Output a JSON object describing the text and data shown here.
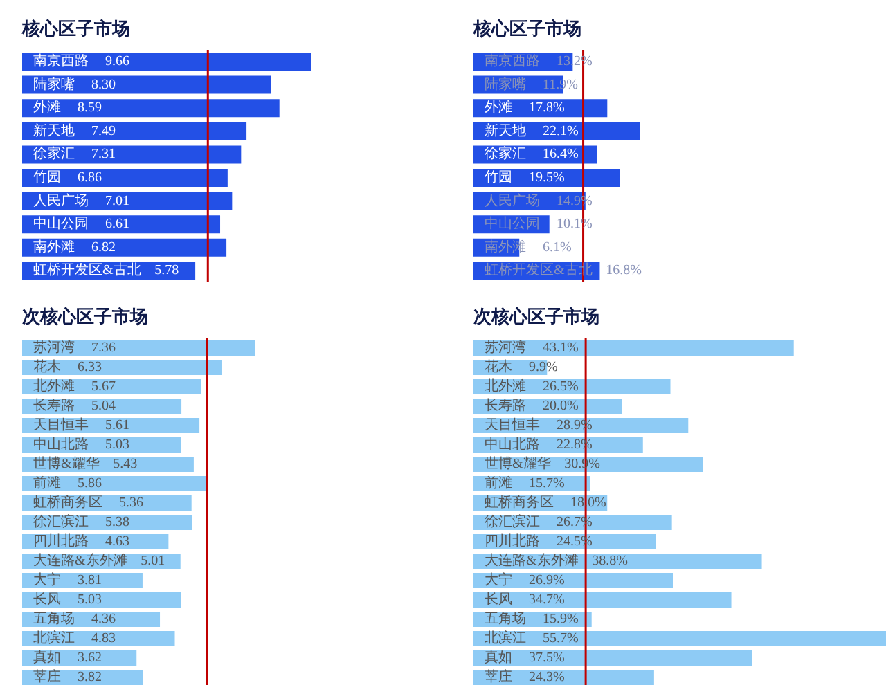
{
  "chart_data": [
    {
      "type": "bar",
      "orientation": "horizontal",
      "title": "核心区子市场",
      "categories": [
        "南京西路",
        "陆家嘴",
        "外滩",
        "新天地",
        "徐家汇",
        "竹园",
        "人民广场",
        "中山公园",
        "南外滩",
        "虹桥开发区&古北"
      ],
      "series": [
        {
          "color": "#2350e6",
          "values": [
            9.66,
            8.3,
            8.59,
            7.49,
            7.31,
            6.86,
            7.01,
            6.61,
            6.82,
            5.78
          ],
          "value_labels": [
            "9.66",
            "8.30",
            "8.59",
            "7.49",
            "7.31",
            "6.86",
            "7.01",
            "6.61",
            "6.82",
            "5.78"
          ]
        }
      ],
      "tick_labels": false,
      "ref_lines": [
        {
          "axis": "x",
          "value": 6.2,
          "color": "#c00000"
        }
      ]
    },
    {
      "type": "bar",
      "orientation": "horizontal",
      "title": "核心区子市场",
      "categories": [
        "南京西路",
        "陆家嘴",
        "外滩",
        "新天地",
        "徐家汇",
        "竹园",
        "人民广场",
        "中山公园",
        "南外滩",
        "虹桥开发区&古北"
      ],
      "series": [
        {
          "color": "#2350e6",
          "values": [
            13.2,
            11.9,
            17.8,
            22.1,
            16.4,
            19.5,
            14.9,
            10.1,
            6.1,
            16.8
          ],
          "value_labels": [
            "13.2%",
            "11.9%",
            "17.8%",
            "22.1%",
            "16.4%",
            "19.5%",
            "14.9%",
            "10.1%",
            "6.1%",
            "16.8%"
          ]
        }
      ],
      "tick_labels": false,
      "ref_lines": [
        {
          "axis": "x",
          "value": 14.6,
          "color": "#c00000"
        }
      ]
    },
    {
      "type": "bar",
      "orientation": "horizontal",
      "title": "次核心区子市场",
      "categories": [
        "苏河湾",
        "花木",
        "北外滩",
        "长寿路",
        "天目恒丰",
        "中山北路",
        "世博&耀华",
        "前滩",
        "虹桥商务区",
        "徐汇滨江",
        "四川北路",
        "大连路&东外滩",
        "大宁",
        "长风",
        "五角场",
        "北滨江",
        "真如",
        "莘庄"
      ],
      "series": [
        {
          "color": "#8ecbf5",
          "values": [
            7.36,
            6.33,
            5.67,
            5.04,
            5.61,
            5.03,
            5.43,
            5.86,
            5.36,
            5.38,
            4.63,
            5.01,
            3.81,
            5.03,
            4.36,
            4.83,
            3.62,
            3.82
          ],
          "value_labels": [
            "7.36",
            "6.33",
            "5.67",
            "5.04",
            "5.61",
            "5.03",
            "5.43",
            "5.86",
            "5.36",
            "5.38",
            "4.63",
            "5.01",
            "3.81",
            "5.03",
            "4.36",
            "4.83",
            "3.62",
            "3.82"
          ]
        }
      ],
      "tick_labels": false,
      "ref_lines": [
        {
          "axis": "x",
          "value": 5.85,
          "color": "#c00000"
        }
      ]
    },
    {
      "type": "bar",
      "orientation": "horizontal",
      "title": "次核心区子市场",
      "categories": [
        "苏河湾",
        "花木",
        "北外滩",
        "长寿路",
        "天目恒丰",
        "中山北路",
        "世博&耀华",
        "前滩",
        "虹桥商务区",
        "徐汇滨江",
        "四川北路",
        "大连路&东外滩",
        "大宁",
        "长风",
        "五角场",
        "北滨江",
        "真如",
        "莘庄"
      ],
      "series": [
        {
          "color": "#8ecbf5",
          "values": [
            43.1,
            9.9,
            26.5,
            20.0,
            28.9,
            22.8,
            30.9,
            15.7,
            18.0,
            26.7,
            24.5,
            38.8,
            26.9,
            34.7,
            15.9,
            55.7,
            37.5,
            24.3
          ],
          "value_labels": [
            "43.1%",
            "9.9%",
            "26.5%",
            "20.0%",
            "28.9%",
            "22.8%",
            "30.9%",
            "15.7%",
            "18.0%",
            "26.7%",
            "24.5%",
            "38.8%",
            "26.9%",
            "34.7%",
            "15.9%",
            "55.7%",
            "37.5%",
            "24.3%"
          ]
        }
      ],
      "tick_labels": false,
      "ref_lines": [
        {
          "axis": "x",
          "value": 15.1,
          "color": "#c00000"
        }
      ]
    }
  ]
}
